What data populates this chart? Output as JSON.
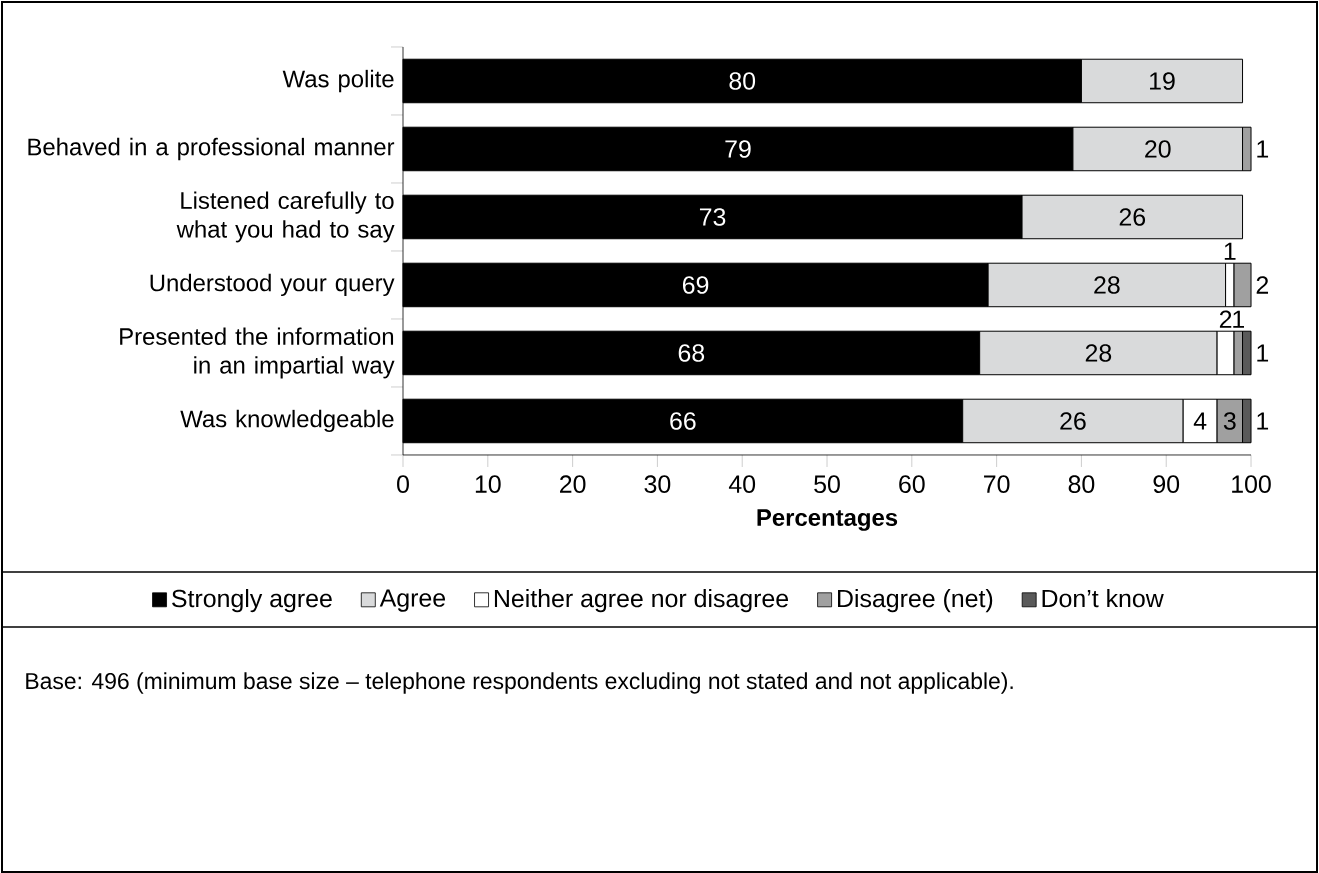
{
  "chart_data": {
    "type": "bar",
    "orientation": "horizontal",
    "stacked": true,
    "categories": [
      "Was polite",
      "Behaved in a professional manner",
      "Listened carefully to what you had to say",
      "Understood your query",
      "Presented the information in an impartial way",
      "Was knowledgeable"
    ],
    "series": [
      {
        "name": "Strongly agree",
        "color": "#000000",
        "values": [
          80,
          79,
          73,
          69,
          68,
          66
        ]
      },
      {
        "name": "Agree",
        "color": "#d9dadb",
        "values": [
          19,
          20,
          26,
          28,
          28,
          26
        ]
      },
      {
        "name": "Neither agree nor disagree",
        "color": "#ffffff",
        "values": [
          null,
          null,
          null,
          1,
          2,
          4
        ]
      },
      {
        "name": "Disagree (net)",
        "color": "#a0a0a0",
        "values": [
          null,
          1,
          null,
          2,
          1,
          3
        ]
      },
      {
        "name": "Don’t know",
        "color": "#5a5a5a",
        "values": [
          null,
          null,
          null,
          null,
          1,
          1
        ]
      }
    ],
    "xlabel": "Percentages",
    "xlim": [
      0,
      100
    ],
    "xticks": [
      0,
      10,
      20,
      30,
      40,
      50,
      60,
      70,
      80,
      90,
      100
    ],
    "legend": "bottom",
    "data_labels": true,
    "annotations": [
      "Base: 496 (minimum base size – telephone respondents excluding not stated and not applicable)."
    ]
  }
}
